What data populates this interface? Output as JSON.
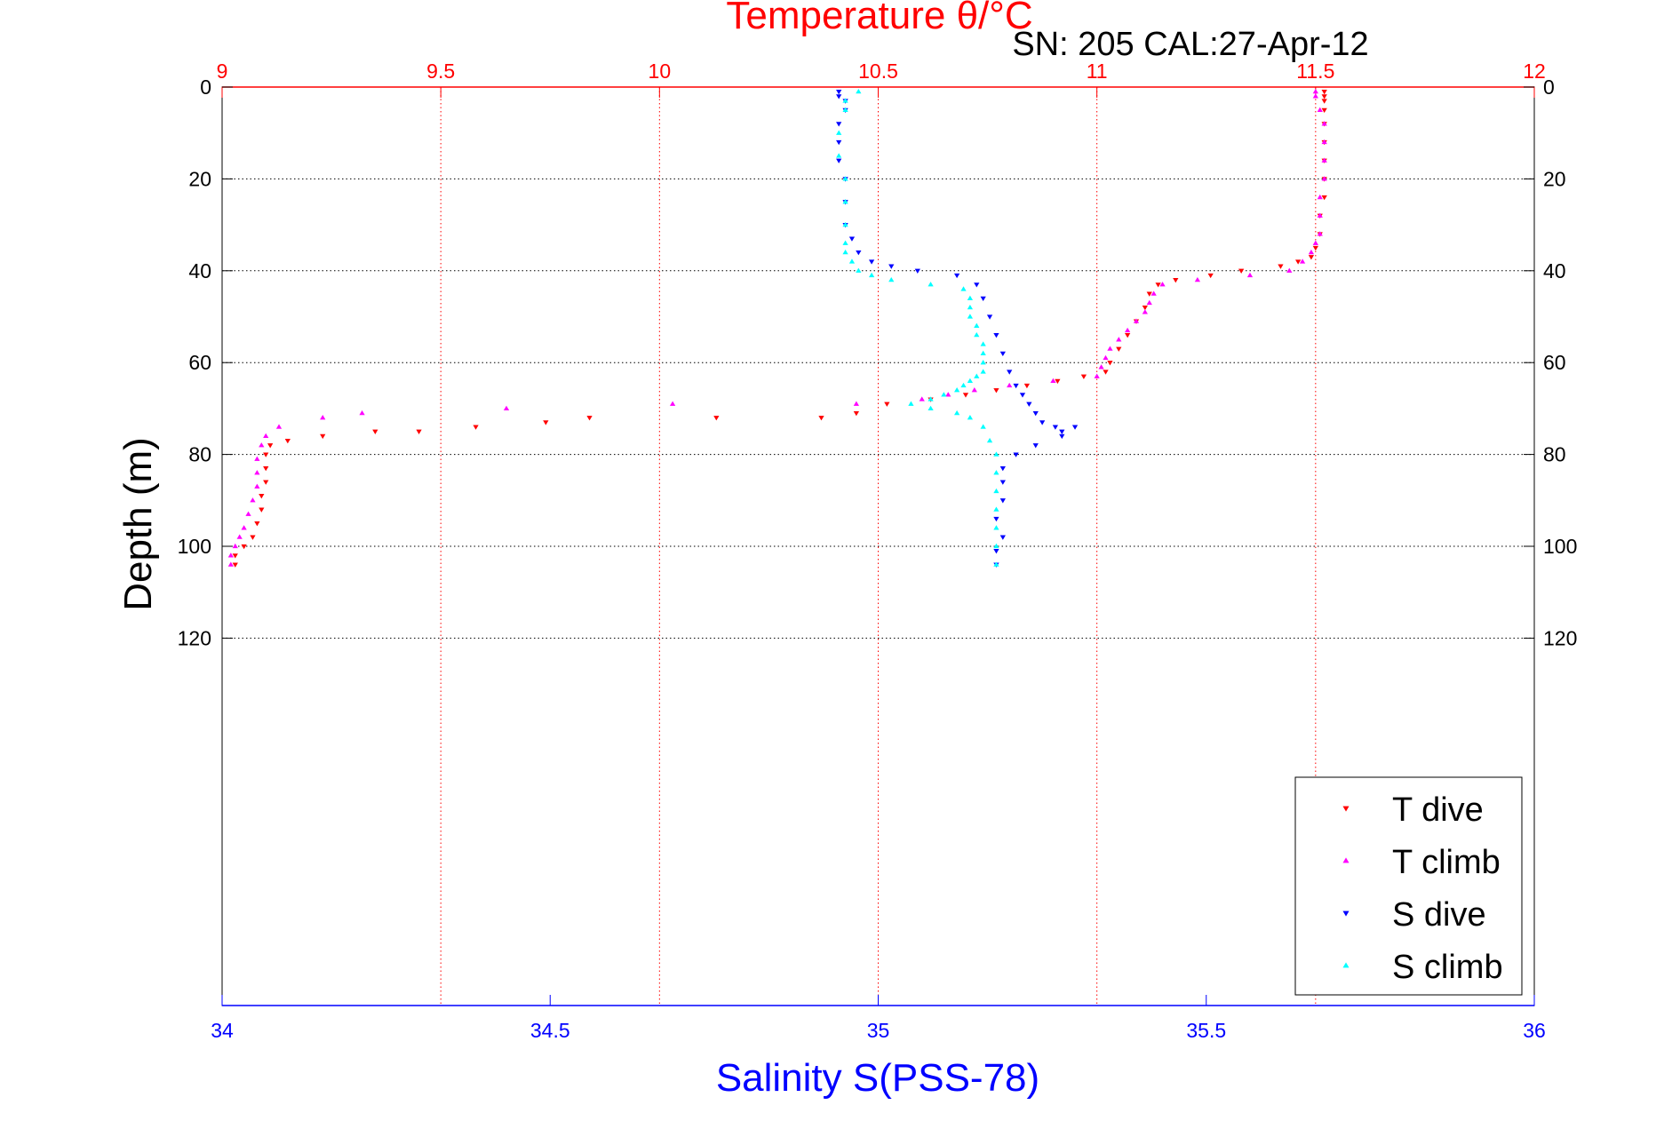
{
  "chart_data": {
    "type": "scatter",
    "title": "Temperature θ/°C",
    "subtitle": "SN: 205  CAL:27-Apr-12",
    "ylabel": "Depth (m)",
    "y_reversed": true,
    "ylim": [
      0,
      200
    ],
    "y_ticks": [
      "0",
      "20",
      "40",
      "60",
      "80",
      "100",
      "120"
    ],
    "y_tick_values": [
      0,
      20,
      40,
      60,
      80,
      100,
      120
    ],
    "top_axis": {
      "label": "Temperature θ/°C",
      "range": [
        9,
        12
      ],
      "ticks": [
        "9",
        "9.5",
        "10",
        "10.5",
        "11",
        "11.5",
        "12"
      ],
      "tick_values": [
        9,
        9.5,
        10,
        10.5,
        11,
        11.5,
        12
      ],
      "color": "#ff0000"
    },
    "bottom_axis": {
      "label": "Salinity S(PSS-78)",
      "range": [
        34,
        36
      ],
      "ticks": [
        "34",
        "34.5",
        "35",
        "35.5",
        "36"
      ],
      "tick_values": [
        34,
        34.5,
        35,
        35.5,
        36
      ],
      "color": "#0000ff"
    },
    "grid": true,
    "legend_position": "bottom-right",
    "series": [
      {
        "name": "T dive",
        "axis": "temperature",
        "color": "#ff0000",
        "marker": "triangle-down",
        "points": [
          [
            11.52,
            1
          ],
          [
            11.52,
            2
          ],
          [
            11.52,
            3
          ],
          [
            11.52,
            5
          ],
          [
            11.52,
            8
          ],
          [
            11.52,
            12
          ],
          [
            11.52,
            16
          ],
          [
            11.52,
            20
          ],
          [
            11.52,
            24
          ],
          [
            11.51,
            28
          ],
          [
            11.51,
            32
          ],
          [
            11.5,
            35
          ],
          [
            11.49,
            37
          ],
          [
            11.46,
            38
          ],
          [
            11.42,
            39
          ],
          [
            11.33,
            40
          ],
          [
            11.26,
            41
          ],
          [
            11.18,
            42
          ],
          [
            11.14,
            43
          ],
          [
            11.12,
            45
          ],
          [
            11.11,
            48
          ],
          [
            11.09,
            51
          ],
          [
            11.07,
            54
          ],
          [
            11.05,
            57
          ],
          [
            11.03,
            60
          ],
          [
            11.02,
            62
          ],
          [
            10.97,
            63
          ],
          [
            10.91,
            64
          ],
          [
            10.84,
            65
          ],
          [
            10.77,
            66
          ],
          [
            10.7,
            67
          ],
          [
            10.62,
            68
          ],
          [
            10.52,
            69
          ],
          [
            10.45,
            71
          ],
          [
            10.37,
            72
          ],
          [
            10.13,
            72
          ],
          [
            9.84,
            72
          ],
          [
            9.74,
            73
          ],
          [
            9.58,
            74
          ],
          [
            9.45,
            75
          ],
          [
            9.35,
            75
          ],
          [
            9.23,
            76
          ],
          [
            9.15,
            77
          ],
          [
            9.11,
            78
          ],
          [
            9.1,
            80
          ],
          [
            9.1,
            83
          ],
          [
            9.1,
            86
          ],
          [
            9.09,
            89
          ],
          [
            9.09,
            92
          ],
          [
            9.08,
            95
          ],
          [
            9.07,
            98
          ],
          [
            9.05,
            100
          ],
          [
            9.03,
            102
          ],
          [
            9.03,
            104
          ]
        ]
      },
      {
        "name": "T climb",
        "axis": "temperature",
        "color": "#ff00ff",
        "marker": "triangle-up",
        "points": [
          [
            9.02,
            104
          ],
          [
            9.02,
            102
          ],
          [
            9.03,
            100
          ],
          [
            9.04,
            98
          ],
          [
            9.05,
            96
          ],
          [
            9.06,
            93
          ],
          [
            9.07,
            90
          ],
          [
            9.08,
            87
          ],
          [
            9.08,
            84
          ],
          [
            9.08,
            81
          ],
          [
            9.09,
            78
          ],
          [
            9.1,
            76
          ],
          [
            9.13,
            74
          ],
          [
            9.23,
            72
          ],
          [
            9.32,
            71
          ],
          [
            9.65,
            70
          ],
          [
            10.03,
            69
          ],
          [
            10.45,
            69
          ],
          [
            10.6,
            68
          ],
          [
            10.66,
            67
          ],
          [
            10.72,
            66
          ],
          [
            10.8,
            65
          ],
          [
            10.9,
            64
          ],
          [
            11.0,
            63
          ],
          [
            11.01,
            61
          ],
          [
            11.02,
            59
          ],
          [
            11.03,
            57
          ],
          [
            11.05,
            55
          ],
          [
            11.07,
            53
          ],
          [
            11.09,
            51
          ],
          [
            11.11,
            49
          ],
          [
            11.12,
            47
          ],
          [
            11.13,
            45
          ],
          [
            11.15,
            43
          ],
          [
            11.23,
            42
          ],
          [
            11.35,
            41
          ],
          [
            11.44,
            40
          ],
          [
            11.47,
            38
          ],
          [
            11.49,
            36
          ],
          [
            11.5,
            34
          ],
          [
            11.51,
            32
          ],
          [
            11.51,
            28
          ],
          [
            11.51,
            24
          ],
          [
            11.52,
            20
          ],
          [
            11.52,
            16
          ],
          [
            11.52,
            12
          ],
          [
            11.52,
            8
          ],
          [
            11.51,
            5
          ],
          [
            11.5,
            2
          ],
          [
            11.5,
            1
          ]
        ]
      },
      {
        "name": "S dive",
        "axis": "salinity",
        "color": "#0000ff",
        "marker": "triangle-down",
        "points": [
          [
            34.94,
            1
          ],
          [
            34.94,
            2
          ],
          [
            34.95,
            3
          ],
          [
            34.95,
            5
          ],
          [
            34.94,
            8
          ],
          [
            34.94,
            12
          ],
          [
            34.94,
            16
          ],
          [
            34.95,
            20
          ],
          [
            34.95,
            25
          ],
          [
            34.95,
            30
          ],
          [
            34.96,
            33
          ],
          [
            34.97,
            36
          ],
          [
            34.99,
            38
          ],
          [
            35.02,
            39
          ],
          [
            35.06,
            40
          ],
          [
            35.12,
            41
          ],
          [
            35.15,
            43
          ],
          [
            35.16,
            46
          ],
          [
            35.17,
            50
          ],
          [
            35.18,
            54
          ],
          [
            35.19,
            58
          ],
          [
            35.2,
            62
          ],
          [
            35.21,
            65
          ],
          [
            35.22,
            67
          ],
          [
            35.23,
            69
          ],
          [
            35.24,
            71
          ],
          [
            35.25,
            73
          ],
          [
            35.27,
            74
          ],
          [
            35.28,
            75
          ],
          [
            35.3,
            74
          ],
          [
            35.28,
            76
          ],
          [
            35.24,
            78
          ],
          [
            35.21,
            80
          ],
          [
            35.19,
            83
          ],
          [
            35.19,
            86
          ],
          [
            35.19,
            90
          ],
          [
            35.18,
            94
          ],
          [
            35.19,
            98
          ],
          [
            35.18,
            101
          ],
          [
            35.18,
            104
          ]
        ]
      },
      {
        "name": "S climb",
        "axis": "salinity",
        "color": "#00ffff",
        "marker": "triangle-up",
        "points": [
          [
            35.18,
            104
          ],
          [
            35.18,
            100
          ],
          [
            35.18,
            96
          ],
          [
            35.18,
            92
          ],
          [
            35.18,
            88
          ],
          [
            35.18,
            84
          ],
          [
            35.18,
            80
          ],
          [
            35.17,
            77
          ],
          [
            35.16,
            74
          ],
          [
            35.14,
            72
          ],
          [
            35.12,
            71
          ],
          [
            35.08,
            70
          ],
          [
            35.05,
            69
          ],
          [
            35.08,
            68
          ],
          [
            35.1,
            67
          ],
          [
            35.12,
            66
          ],
          [
            35.13,
            65
          ],
          [
            35.14,
            64
          ],
          [
            35.15,
            63
          ],
          [
            35.16,
            62
          ],
          [
            35.16,
            60
          ],
          [
            35.16,
            58
          ],
          [
            35.16,
            56
          ],
          [
            35.15,
            54
          ],
          [
            35.15,
            52
          ],
          [
            35.14,
            50
          ],
          [
            35.14,
            48
          ],
          [
            35.14,
            46
          ],
          [
            35.13,
            44
          ],
          [
            35.08,
            43
          ],
          [
            35.02,
            42
          ],
          [
            34.99,
            41
          ],
          [
            34.97,
            40
          ],
          [
            34.96,
            38
          ],
          [
            34.95,
            36
          ],
          [
            34.95,
            34
          ],
          [
            34.95,
            30
          ],
          [
            34.95,
            25
          ],
          [
            34.95,
            20
          ],
          [
            34.94,
            15
          ],
          [
            34.94,
            10
          ],
          [
            34.95,
            5
          ],
          [
            34.95,
            3
          ],
          [
            34.97,
            1
          ]
        ]
      }
    ]
  }
}
